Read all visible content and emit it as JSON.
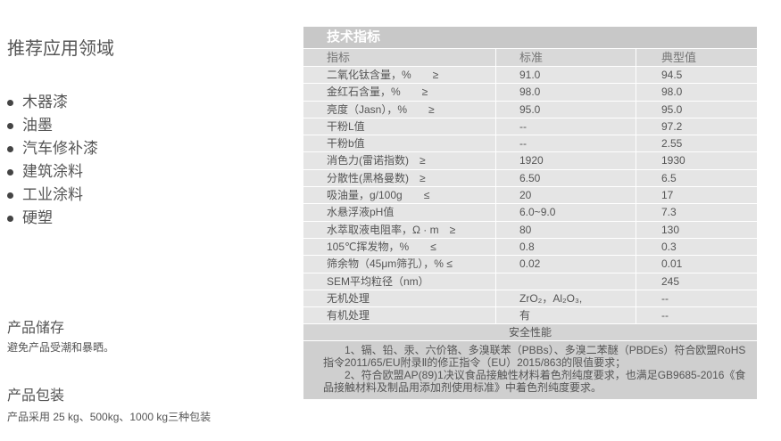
{
  "left": {
    "applications_title": "推荐应用领域",
    "applications": [
      "木器漆",
      "油墨",
      "汽车修补漆",
      "建筑涂料",
      "工业涂料",
      "硬塑"
    ],
    "storage_title": "产品储存",
    "storage_text": "避免产品受潮和暴晒。",
    "packaging_title": "产品包装",
    "packaging_text": "产品采用 25 kg、500kg、1000 kg三种包装"
  },
  "spec_table": {
    "title": "技术指标",
    "headers": [
      "指标",
      "标准",
      "典型值"
    ],
    "rows": [
      [
        "二氧化钛含量，%　　≥",
        "91.0",
        "94.5"
      ],
      [
        "金红石含量，%　　≥",
        "98.0",
        "98.0"
      ],
      [
        "亮度（Jasn），%　　≥",
        "95.0",
        "95.0"
      ],
      [
        "干粉L值",
        "--",
        "97.2"
      ],
      [
        "干粉b值",
        "--",
        "2.55"
      ],
      [
        "消色力(雷诺指数)　≥",
        "1920",
        "1930"
      ],
      [
        "分散性(黑格曼数)　≥",
        "6.50",
        "6.5"
      ],
      [
        "吸油量，g/100g　　≤",
        "20",
        "17"
      ],
      [
        "水悬浮液pH值",
        "6.0~9.0",
        "7.3"
      ],
      [
        "水萃取液电阻率，Ω · m　≥",
        "80",
        "130"
      ],
      [
        "105℃挥发物，%　　≤",
        "0.8",
        "0.3"
      ],
      [
        "筛余物（45μm筛孔），% ≤",
        "0.02",
        "0.01"
      ],
      [
        "SEM平均粒径（nm）",
        "",
        "245"
      ],
      [
        "无机处理",
        "ZrO₂，Al₂O₃,",
        "--"
      ],
      [
        "有机处理",
        "有",
        "--"
      ]
    ],
    "safety_title": "安全性能",
    "safety_notes": [
      "1、镉、铅、汞、六价铬、多溴联苯（PBBs）、多溴二苯醚（PBDEs）符合欧盟RoHS指令2011/65/EU附录Ⅱ的修正指令（EU）2015/863的限值要求；",
      "2、符合欧盟AP(89)1决议食品接触性材料着色剂纯度要求，也满足GB9685-2016《食品接触材料及制品用添加剂使用标准》中着色剂纯度要求。"
    ]
  }
}
